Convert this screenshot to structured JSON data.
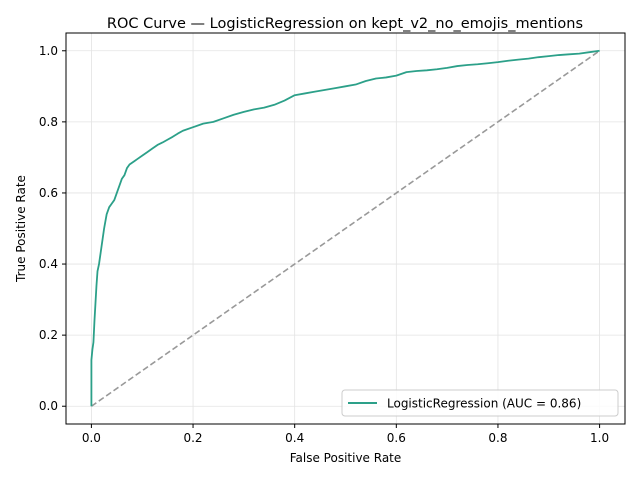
{
  "chart_data": {
    "type": "line",
    "title": "ROC Curve — LogisticRegression on kept_v2_no_emojis_mentions",
    "xlabel": "False Positive Rate",
    "ylabel": "True Positive Rate",
    "xlim": [
      -0.05,
      1.05
    ],
    "ylim": [
      -0.05,
      1.05
    ],
    "xticks": [
      0.0,
      0.2,
      0.4,
      0.6,
      0.8,
      1.0
    ],
    "yticks": [
      0.0,
      0.2,
      0.4,
      0.6,
      0.8,
      1.0
    ],
    "xtick_labels": [
      "0.0",
      "0.2",
      "0.4",
      "0.6",
      "0.8",
      "1.0"
    ],
    "ytick_labels": [
      "0.0",
      "0.2",
      "0.4",
      "0.6",
      "0.8",
      "1.0"
    ],
    "grid": true,
    "legend_position": "lower-right",
    "series": [
      {
        "name": "LogisticRegression (AUC = 0.86)",
        "color": "#2ca089",
        "style": "solid",
        "x": [
          0.0,
          0.0,
          0.002,
          0.004,
          0.006,
          0.008,
          0.01,
          0.012,
          0.015,
          0.02,
          0.022,
          0.025,
          0.03,
          0.035,
          0.04,
          0.045,
          0.05,
          0.055,
          0.06,
          0.065,
          0.07,
          0.075,
          0.08,
          0.085,
          0.09,
          0.1,
          0.11,
          0.12,
          0.13,
          0.14,
          0.15,
          0.16,
          0.17,
          0.18,
          0.2,
          0.22,
          0.24,
          0.26,
          0.28,
          0.3,
          0.32,
          0.34,
          0.36,
          0.38,
          0.4,
          0.42,
          0.44,
          0.46,
          0.48,
          0.5,
          0.52,
          0.54,
          0.56,
          0.58,
          0.6,
          0.62,
          0.64,
          0.66,
          0.68,
          0.7,
          0.72,
          0.74,
          0.76,
          0.78,
          0.8,
          0.82,
          0.84,
          0.86,
          0.88,
          0.9,
          0.92,
          0.94,
          0.96,
          0.98,
          1.0
        ],
        "y": [
          0.0,
          0.13,
          0.16,
          0.18,
          0.24,
          0.29,
          0.34,
          0.38,
          0.4,
          0.45,
          0.47,
          0.5,
          0.54,
          0.56,
          0.57,
          0.58,
          0.6,
          0.62,
          0.64,
          0.65,
          0.67,
          0.68,
          0.685,
          0.69,
          0.695,
          0.705,
          0.715,
          0.725,
          0.735,
          0.742,
          0.75,
          0.758,
          0.767,
          0.775,
          0.785,
          0.795,
          0.8,
          0.81,
          0.82,
          0.828,
          0.835,
          0.84,
          0.848,
          0.86,
          0.875,
          0.88,
          0.885,
          0.89,
          0.895,
          0.9,
          0.905,
          0.915,
          0.922,
          0.925,
          0.93,
          0.94,
          0.943,
          0.945,
          0.948,
          0.952,
          0.957,
          0.96,
          0.962,
          0.965,
          0.968,
          0.972,
          0.975,
          0.978,
          0.982,
          0.985,
          0.988,
          0.99,
          0.992,
          0.996,
          1.0
        ]
      },
      {
        "name": "",
        "color": "#999999",
        "style": "dashed",
        "x": [
          0.0,
          1.0
        ],
        "y": [
          0.0,
          1.0
        ]
      }
    ]
  }
}
